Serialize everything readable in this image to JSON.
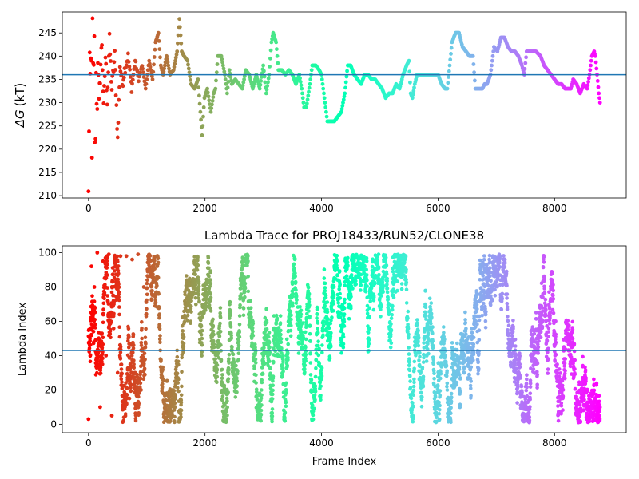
{
  "chart_data": [
    {
      "type": "scatter",
      "title": "",
      "xlabel": "",
      "ylabel": "ΔG (kT)",
      "ylabel_symbol": "ΔG",
      "ylabel_unit": "(kT)",
      "xlim": [
        -450,
        9230
      ],
      "ylim": [
        209.5,
        249.5
      ],
      "xticks": [
        0,
        2000,
        4000,
        6000,
        8000
      ],
      "yticks": [
        210,
        215,
        220,
        225,
        230,
        235,
        240,
        245
      ],
      "hline": 236,
      "hline_color": "#1f77b4",
      "colormap": "rainbow (reversed: red at frame 0, violet at last frame)",
      "frame_count": 8780,
      "trace": [
        [
          0,
          210
        ],
        [
          20,
          240
        ],
        [
          35,
          230
        ],
        [
          45,
          247
        ],
        [
          60,
          220
        ],
        [
          70,
          246
        ],
        [
          85,
          233
        ],
        [
          100,
          243
        ],
        [
          115,
          212
        ],
        [
          130,
          238
        ],
        [
          145,
          225
        ],
        [
          160,
          240
        ],
        [
          180,
          229
        ],
        [
          200,
          236
        ],
        [
          230,
          243
        ],
        [
          260,
          228
        ],
        [
          290,
          240
        ],
        [
          320,
          231
        ],
        [
          360,
          243
        ],
        [
          400,
          233
        ],
        [
          450,
          240
        ],
        [
          500,
          222
        ],
        [
          540,
          238
        ],
        [
          580,
          234
        ],
        [
          620,
          237
        ],
        [
          680,
          240
        ],
        [
          740,
          233
        ],
        [
          800,
          239
        ],
        [
          860,
          235
        ],
        [
          920,
          238
        ],
        [
          980,
          233
        ],
        [
          1040,
          239
        ],
        [
          1100,
          235
        ],
        [
          1150,
          243
        ],
        [
          1200,
          245
        ],
        [
          1240,
          238
        ],
        [
          1280,
          236
        ],
        [
          1340,
          240
        ],
        [
          1400,
          236
        ],
        [
          1460,
          237
        ],
        [
          1520,
          241
        ],
        [
          1560,
          248
        ],
        [
          1600,
          241
        ],
        [
          1640,
          240
        ],
        [
          1700,
          239
        ],
        [
          1760,
          234
        ],
        [
          1820,
          233
        ],
        [
          1880,
          235
        ],
        [
          1920,
          228
        ],
        [
          1950,
          223
        ],
        [
          1990,
          231
        ],
        [
          2040,
          233
        ],
        [
          2100,
          228
        ],
        [
          2150,
          232
        ],
        [
          2180,
          233
        ],
        [
          2220,
          240
        ],
        [
          2280,
          240
        ],
        [
          2340,
          236
        ],
        [
          2380,
          232
        ],
        [
          2420,
          237
        ],
        [
          2460,
          234
        ],
        [
          2520,
          235
        ],
        [
          2580,
          234
        ],
        [
          2640,
          233
        ],
        [
          2700,
          237
        ],
        [
          2760,
          236
        ],
        [
          2820,
          233
        ],
        [
          2880,
          236
        ],
        [
          2940,
          233
        ],
        [
          3000,
          238
        ],
        [
          3050,
          232
        ],
        [
          3100,
          236
        ],
        [
          3140,
          243
        ],
        [
          3170,
          245
        ],
        [
          3220,
          243
        ],
        [
          3260,
          237
        ],
        [
          3320,
          237
        ],
        [
          3380,
          236
        ],
        [
          3440,
          237
        ],
        [
          3500,
          236
        ],
        [
          3560,
          234
        ],
        [
          3620,
          236
        ],
        [
          3660,
          233
        ],
        [
          3700,
          229
        ],
        [
          3740,
          229
        ],
        [
          3800,
          234
        ],
        [
          3840,
          238
        ],
        [
          3900,
          238
        ],
        [
          3960,
          237
        ],
        [
          4000,
          236
        ],
        [
          4050,
          231
        ],
        [
          4100,
          226
        ],
        [
          4160,
          226
        ],
        [
          4220,
          226
        ],
        [
          4280,
          227
        ],
        [
          4340,
          228
        ],
        [
          4400,
          232
        ],
        [
          4450,
          238
        ],
        [
          4500,
          238
        ],
        [
          4560,
          236
        ],
        [
          4620,
          235
        ],
        [
          4680,
          234
        ],
        [
          4740,
          236
        ],
        [
          4800,
          236
        ],
        [
          4860,
          235
        ],
        [
          4920,
          235
        ],
        [
          4980,
          234
        ],
        [
          5040,
          233
        ],
        [
          5100,
          231
        ],
        [
          5160,
          232
        ],
        [
          5220,
          232
        ],
        [
          5280,
          234
        ],
        [
          5340,
          233
        ],
        [
          5400,
          236
        ],
        [
          5460,
          238
        ],
        [
          5500,
          239
        ],
        [
          5530,
          232
        ],
        [
          5560,
          231
        ],
        [
          5600,
          234
        ],
        [
          5640,
          236
        ],
        [
          5700,
          236
        ],
        [
          5800,
          236
        ],
        [
          5900,
          236
        ],
        [
          6000,
          236
        ],
        [
          6060,
          234
        ],
        [
          6120,
          233
        ],
        [
          6160,
          233
        ],
        [
          6200,
          238
        ],
        [
          6240,
          243
        ],
        [
          6300,
          245
        ],
        [
          6360,
          245
        ],
        [
          6420,
          242
        ],
        [
          6480,
          241
        ],
        [
          6540,
          240
        ],
        [
          6600,
          240
        ],
        [
          6640,
          233
        ],
        [
          6700,
          233
        ],
        [
          6760,
          233
        ],
        [
          6800,
          234
        ],
        [
          6840,
          234
        ],
        [
          6900,
          236
        ],
        [
          6960,
          242
        ],
        [
          7020,
          241
        ],
        [
          7080,
          244
        ],
        [
          7140,
          244
        ],
        [
          7200,
          242
        ],
        [
          7260,
          241
        ],
        [
          7320,
          241
        ],
        [
          7380,
          240
        ],
        [
          7440,
          238
        ],
        [
          7480,
          236
        ],
        [
          7520,
          241
        ],
        [
          7600,
          241
        ],
        [
          7680,
          241
        ],
        [
          7760,
          240
        ],
        [
          7820,
          238
        ],
        [
          7880,
          237
        ],
        [
          7940,
          236
        ],
        [
          8000,
          235
        ],
        [
          8060,
          234
        ],
        [
          8120,
          234
        ],
        [
          8180,
          233
        ],
        [
          8220,
          233
        ],
        [
          8280,
          233
        ],
        [
          8320,
          235
        ],
        [
          8380,
          234
        ],
        [
          8440,
          232
        ],
        [
          8500,
          234
        ],
        [
          8560,
          233
        ],
        [
          8600,
          236
        ],
        [
          8640,
          240
        ],
        [
          8680,
          241
        ],
        [
          8700,
          240
        ],
        [
          8730,
          236
        ],
        [
          8760,
          232
        ],
        [
          8780,
          230
        ]
      ]
    },
    {
      "type": "scatter",
      "title": "Lambda Trace for PROJ18433/RUN52/CLONE38",
      "xlabel": "Frame Index",
      "ylabel": "Lambda Index",
      "xlim": [
        -450,
        9230
      ],
      "ylim": [
        -4.95,
        103.95
      ],
      "xticks": [
        0,
        2000,
        4000,
        6000,
        8000
      ],
      "yticks": [
        0,
        20,
        40,
        60,
        80,
        100
      ],
      "hline": 43,
      "hline_color": "#1f77b4",
      "colormap": "rainbow (reversed: red at frame 0, violet at last frame)",
      "frame_count": 8780,
      "band_frames": [
        [
          0,
          3
        ],
        [
          50,
          92
        ],
        [
          100,
          80
        ],
        [
          150,
          100
        ],
        [
          200,
          10
        ],
        [
          250,
          95
        ],
        [
          300,
          40
        ],
        [
          350,
          99
        ],
        [
          400,
          5
        ],
        [
          450,
          97
        ],
        [
          500,
          30
        ],
        [
          550,
          98
        ],
        [
          600,
          2
        ],
        [
          650,
          98
        ],
        [
          700,
          15
        ],
        [
          750,
          96
        ],
        [
          800,
          30
        ],
        [
          850,
          99
        ],
        [
          900,
          20
        ],
        [
          950,
          80
        ]
      ],
      "walk_start_value": 50,
      "walk_step_max": 9,
      "walk_extremes": [
        1,
        99
      ]
    }
  ]
}
